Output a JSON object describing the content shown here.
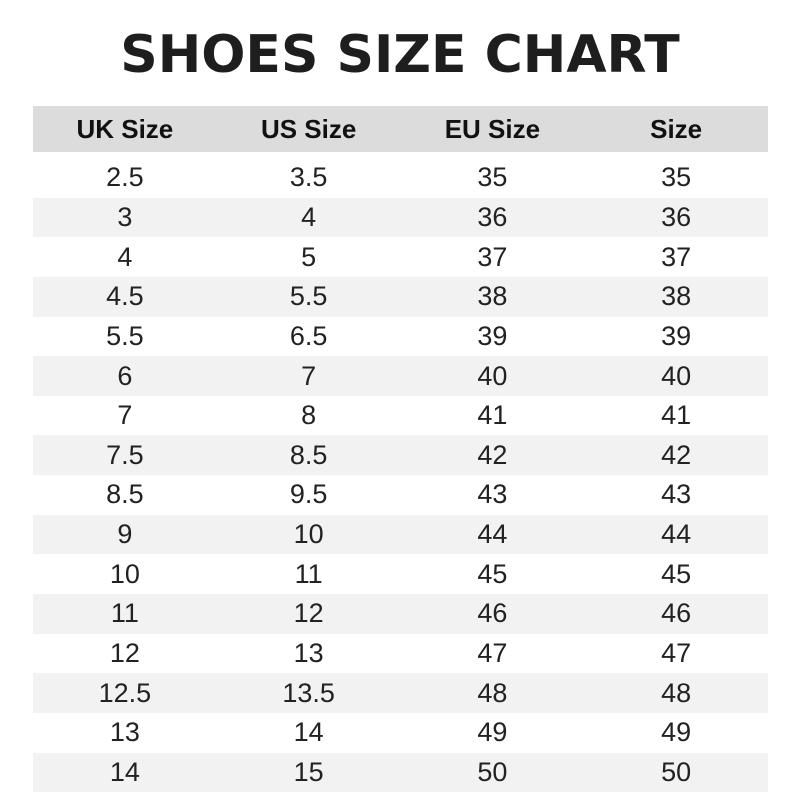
{
  "title": "SHOES SIZE CHART",
  "headers": [
    "UK Size",
    "US Size",
    "EU Size",
    "Size"
  ],
  "rows": [
    [
      "2.5",
      "3.5",
      "35",
      "35"
    ],
    [
      "3",
      "4",
      "36",
      "36"
    ],
    [
      "4",
      "5",
      "37",
      "37"
    ],
    [
      "4.5",
      "5.5",
      "38",
      "38"
    ],
    [
      "5.5",
      "6.5",
      "39",
      "39"
    ],
    [
      "6",
      "7",
      "40",
      "40"
    ],
    [
      "7",
      "8",
      "41",
      "41"
    ],
    [
      "7.5",
      "8.5",
      "42",
      "42"
    ],
    [
      "8.5",
      "9.5",
      "43",
      "43"
    ],
    [
      "9",
      "10",
      "44",
      "44"
    ],
    [
      "10",
      "11",
      "45",
      "45"
    ],
    [
      "11",
      "12",
      "46",
      "46"
    ],
    [
      "12",
      "13",
      "47",
      "47"
    ],
    [
      "12.5",
      "13.5",
      "48",
      "48"
    ],
    [
      "13",
      "14",
      "49",
      "49"
    ],
    [
      "14",
      "15",
      "50",
      "50"
    ]
  ],
  "colors": {
    "header_bg": "#dcdcdc",
    "stripe_bg": "#f2f2f2",
    "text": "#1e1e1e"
  }
}
